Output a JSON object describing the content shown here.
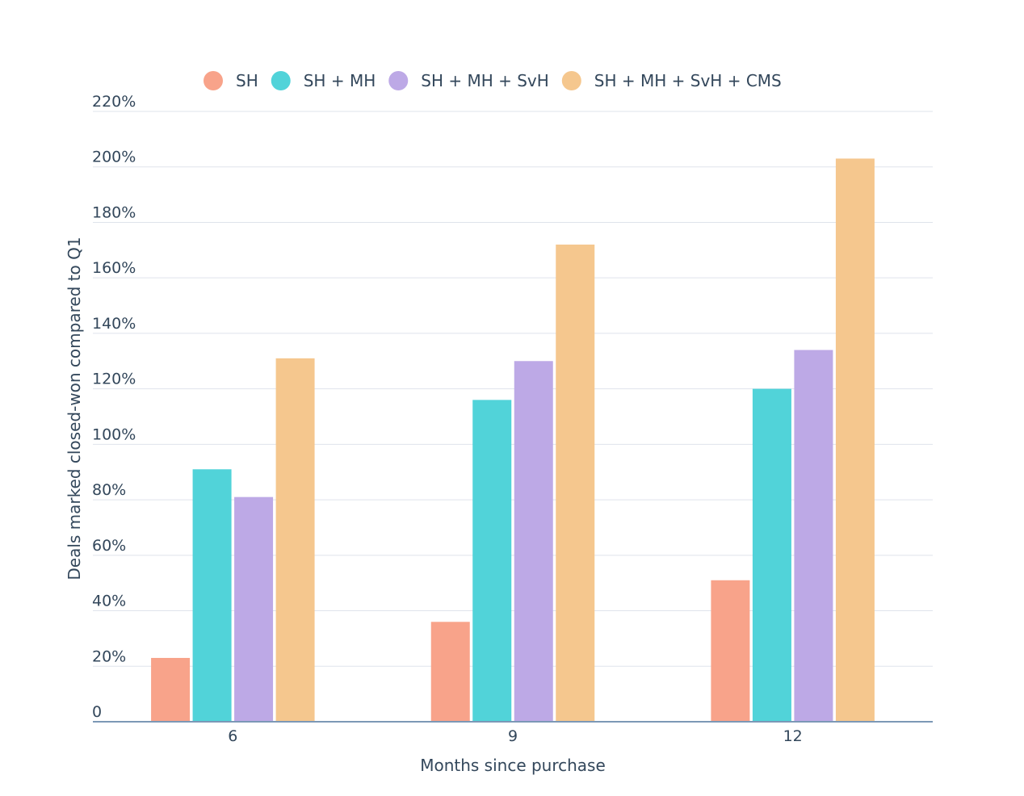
{
  "chart_data": {
    "type": "bar",
    "xlabel": "Months since purchase",
    "ylabel": "Deals marked closed-won compared to Q1",
    "categories": [
      "6",
      "9",
      "12"
    ],
    "yticks": [
      "0",
      "20%",
      "40%",
      "60%",
      "80%",
      "100%",
      "120%",
      "140%",
      "160%",
      "180%",
      "200%",
      "220%"
    ],
    "ylim": [
      0,
      220
    ],
    "grid": true,
    "legend_position": "top",
    "series": [
      {
        "name": "SH",
        "color": "#f8a38a",
        "values": [
          23,
          36,
          51
        ]
      },
      {
        "name": "SH + MH",
        "color": "#51d3d9",
        "values": [
          91,
          116,
          120
        ]
      },
      {
        "name": "SH + MH + SvH",
        "color": "#bda9e6",
        "values": [
          81,
          130,
          134
        ]
      },
      {
        "name": "SH + MH + SvH + CMS",
        "color": "#f5c78e",
        "values": [
          131,
          172,
          203
        ]
      }
    ]
  }
}
